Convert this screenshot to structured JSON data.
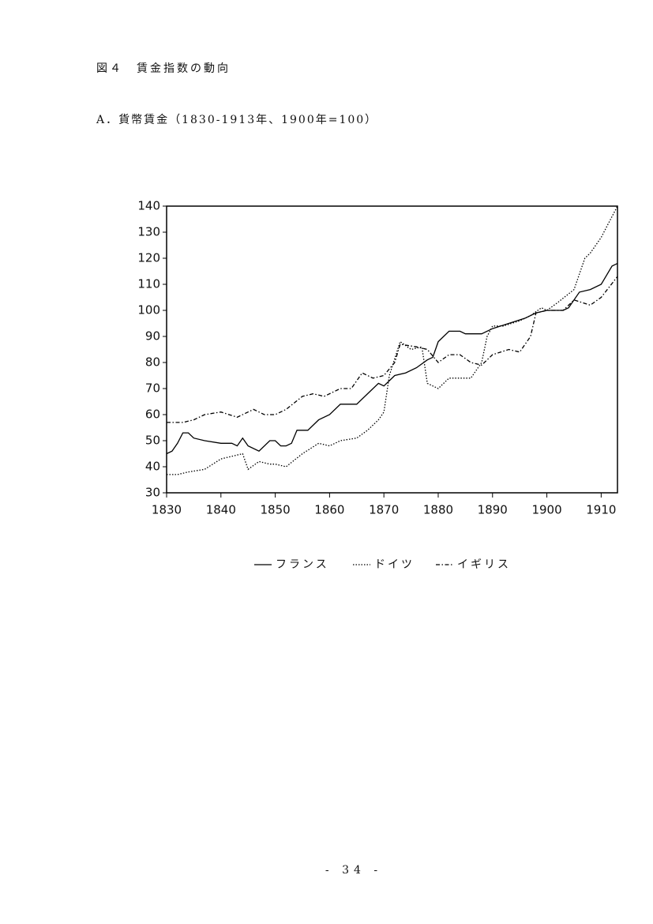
{
  "figure_title": "図４　賃金指数の動向",
  "page_number": "- 34 -",
  "chart_data": {
    "type": "line",
    "title": "A．貨幣賃金（1830-1913年、1900年=100）",
    "xlim": [
      1830,
      1913
    ],
    "xticks": [
      1830,
      1840,
      1850,
      1860,
      1870,
      1880,
      1890,
      1900,
      1910
    ],
    "ylim": [
      30,
      140
    ],
    "yticks": [
      30,
      40,
      50,
      60,
      70,
      80,
      90,
      100,
      110,
      120,
      130,
      140
    ],
    "series": [
      {
        "name": "フランス",
        "color": "#000000",
        "style": "solid",
        "x": [
          1830,
          1831,
          1832,
          1833,
          1834,
          1835,
          1837,
          1840,
          1842,
          1843,
          1844,
          1845,
          1847,
          1849,
          1850,
          1851,
          1852,
          1853,
          1854,
          1856,
          1858,
          1860,
          1862,
          1865,
          1867,
          1869,
          1870,
          1872,
          1874,
          1876,
          1878,
          1879,
          1880,
          1882,
          1884,
          1885,
          1888,
          1890,
          1893,
          1896,
          1898,
          1900,
          1901,
          1903,
          1904,
          1906,
          1908,
          1910,
          1912,
          1913
        ],
        "values": [
          45,
          46,
          49,
          53,
          53,
          51,
          50,
          49,
          49,
          48,
          51,
          48,
          46,
          50,
          50,
          48,
          48,
          49,
          54,
          54,
          58,
          60,
          64,
          64,
          68,
          72,
          71,
          75,
          76,
          78,
          81,
          82,
          88,
          92,
          92,
          91,
          91,
          93,
          95,
          97,
          99,
          100,
          100,
          100,
          101,
          107,
          108,
          110,
          117,
          118
        ]
      },
      {
        "name": "ドイツ",
        "color": "#000000",
        "style": "dotted",
        "x": [
          1830,
          1832,
          1834,
          1837,
          1840,
          1842,
          1844,
          1845,
          1847,
          1849,
          1850,
          1852,
          1855,
          1858,
          1860,
          1862,
          1865,
          1867,
          1869,
          1870,
          1871,
          1873,
          1875,
          1877,
          1878,
          1880,
          1882,
          1884,
          1886,
          1888,
          1889,
          1890,
          1892,
          1895,
          1897,
          1899,
          1900,
          1902,
          1905,
          1907,
          1908,
          1910,
          1911,
          1913
        ],
        "values": [
          37,
          37,
          38,
          39,
          43,
          44,
          45,
          39,
          42,
          41,
          41,
          40,
          45,
          49,
          48,
          50,
          51,
          54,
          58,
          61,
          75,
          88,
          85,
          86,
          72,
          70,
          74,
          74,
          74,
          80,
          90,
          94,
          94,
          96,
          98,
          101,
          100,
          103,
          108,
          120,
          122,
          128,
          132,
          140
        ]
      },
      {
        "name": "イギリス",
        "color": "#000000",
        "style": "dashdot",
        "x": [
          1830,
          1833,
          1835,
          1837,
          1840,
          1843,
          1846,
          1848,
          1850,
          1852,
          1855,
          1857,
          1859,
          1862,
          1864,
          1866,
          1868,
          1870,
          1872,
          1873,
          1876,
          1878,
          1880,
          1882,
          1884,
          1886,
          1888,
          1890,
          1893,
          1895,
          1897,
          1898,
          1900,
          1903,
          1905,
          1908,
          1910,
          1913
        ],
        "values": [
          57,
          57,
          58,
          60,
          61,
          59,
          62,
          60,
          60,
          62,
          67,
          68,
          67,
          70,
          70,
          76,
          74,
          75,
          80,
          87,
          86,
          85,
          80,
          83,
          83,
          80,
          79,
          83,
          85,
          84,
          90,
          99,
          100,
          100,
          104,
          102,
          105,
          113
        ]
      }
    ]
  }
}
